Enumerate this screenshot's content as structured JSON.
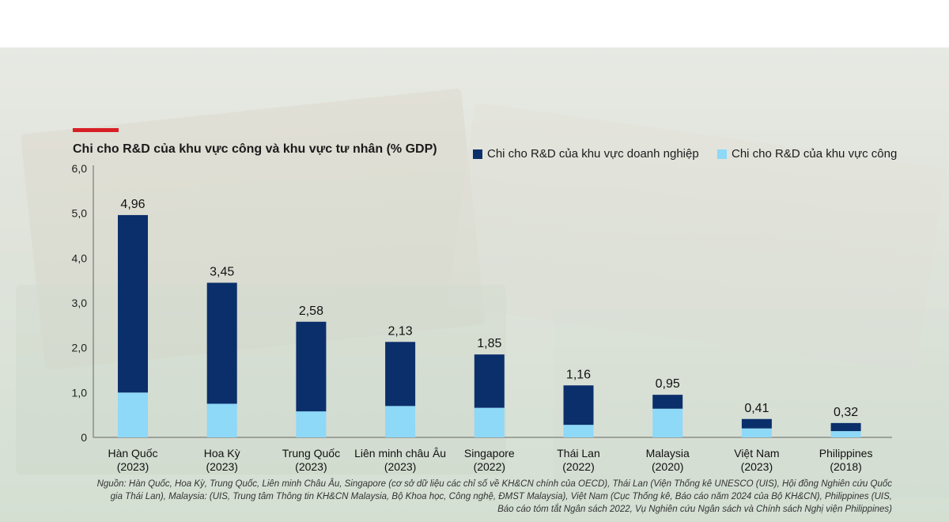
{
  "chart_data": {
    "type": "bar",
    "stacked": true,
    "title": "Chi cho R&D của khu vực công và khu vực tư nhân (% GDP)",
    "categories": [
      {
        "name": "Hàn Quốc",
        "year": "(2023)"
      },
      {
        "name": "Hoa Kỳ",
        "year": "(2023)"
      },
      {
        "name": "Trung Quốc",
        "year": "(2023)"
      },
      {
        "name": "Liên minh châu Âu",
        "year": "(2023)"
      },
      {
        "name": "Singapore",
        "year": "(2022)"
      },
      {
        "name": "Thái Lan",
        "year": "(2022)"
      },
      {
        "name": "Malaysia",
        "year": "(2020)"
      },
      {
        "name": "Việt Nam",
        "year": "(2023)"
      },
      {
        "name": "Philippines",
        "year": "(2018)"
      }
    ],
    "series": [
      {
        "name": "Chi cho R&D của khu vực công",
        "color": "#8ed8f8",
        "values": [
          1.0,
          0.75,
          0.58,
          0.7,
          0.66,
          0.28,
          0.64,
          0.2,
          0.14
        ]
      },
      {
        "name": "Chi cho R&D của khu vực doanh nghiệp",
        "color": "#0b2f6b",
        "values": [
          3.96,
          2.7,
          2.0,
          1.43,
          1.19,
          0.88,
          0.31,
          0.21,
          0.18
        ]
      }
    ],
    "totals": [
      4.96,
      3.45,
      2.58,
      2.13,
      1.85,
      1.16,
      0.95,
      0.41,
      0.32
    ],
    "total_labels": [
      "4,96",
      "3,45",
      "2,58",
      "2,13",
      "1,85",
      "1,16",
      "0,95",
      "0,41",
      "0,32"
    ],
    "ylim": [
      0,
      6
    ],
    "y_ticks": [
      0,
      1,
      2,
      3,
      4,
      5,
      6
    ],
    "y_tick_labels": [
      "0",
      "1,0",
      "2,0",
      "3,0",
      "4,0",
      "5,0",
      "6,0"
    ],
    "legend": [
      {
        "label": "Chi cho R&D của khu vực doanh nghiệp",
        "color": "#0b2f6b"
      },
      {
        "label": "Chi cho R&D của khu vực công",
        "color": "#8ed8f8"
      }
    ],
    "legend_position": "top-right",
    "source": "Nguồn: Hàn Quốc, Hoa Kỳ, Trung Quốc, Liên minh Châu Âu, Singapore (cơ sở dữ liệu các chỉ số về KH&CN chính của OECD), Thái Lan (Viện Thống kê UNESCO (UIS), Hội đồng Nghiên cứu Quốc gia Thái Lan), Malaysia: (UIS, Trung tâm Thông tin KH&CN Malaysia, Bộ Khoa học, Công nghệ, ĐMST Malaysia), Việt Nam (Cục Thống kê, Báo cáo năm 2024 của Bộ KH&CN), Philippines (UIS, Báo cáo tóm tắt Ngân sách 2022, Vụ Nghiên cứu Ngân sách và Chính sách Nghị viện Philippines)"
  },
  "colors": {
    "accent": "#d81f26"
  }
}
